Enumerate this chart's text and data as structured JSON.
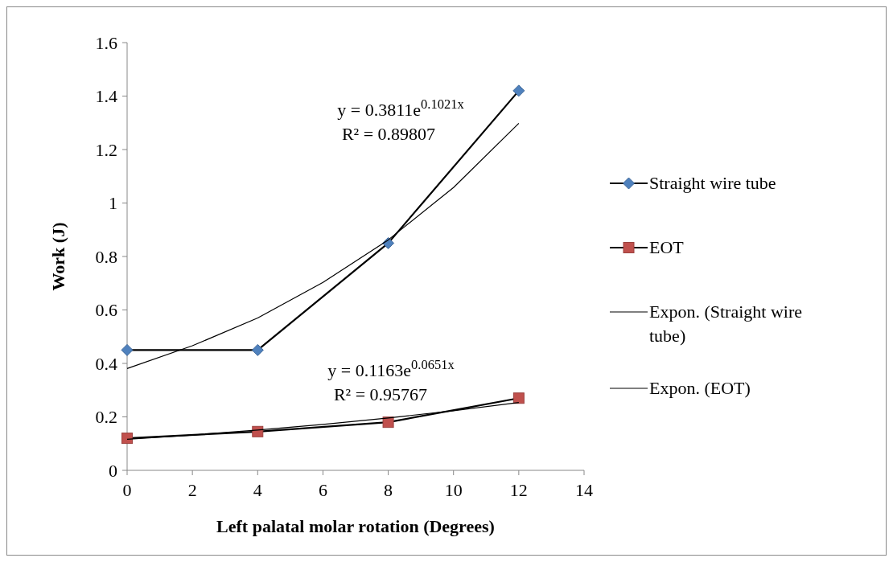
{
  "chart_data": {
    "type": "line",
    "xlabel": "Left palatal molar rotation (Degrees)",
    "ylabel": "Work (J)",
    "x": [
      0,
      4,
      8,
      12
    ],
    "series": [
      {
        "name": "Straight wire tube",
        "color": "#4f81bd",
        "marker": "diamond",
        "values": [
          0.45,
          0.45,
          0.85,
          1.42
        ]
      },
      {
        "name": "EOT",
        "color": "#c0504d",
        "marker": "square",
        "values": [
          0.12,
          0.145,
          0.18,
          0.27
        ]
      },
      {
        "name": "Expon. (Straight wire tube)",
        "color": "#000000",
        "marker": "none",
        "x": [
          0,
          2,
          4,
          6,
          8,
          10,
          12
        ],
        "values": [
          0.381,
          0.466,
          0.57,
          0.703,
          0.862,
          1.058,
          1.298
        ]
      },
      {
        "name": "Expon. (EOT)",
        "color": "#000000",
        "marker": "none",
        "x": [
          0,
          2,
          4,
          6,
          8,
          10,
          12
        ],
        "values": [
          0.116,
          0.132,
          0.151,
          0.172,
          0.196,
          0.223,
          0.254
        ]
      }
    ],
    "xlim": [
      0,
      14
    ],
    "xticks": [
      0,
      2,
      4,
      6,
      8,
      10,
      12,
      14
    ],
    "ylim": [
      0,
      1.6
    ],
    "yticks": [
      0,
      0.2,
      0.4,
      0.6,
      0.8,
      1,
      1.2,
      1.4,
      1.6
    ],
    "grid": false,
    "legend": "right",
    "annotations": [
      "y = 0.3811e$^{0.1021x}$",
      "R² = 0.89807",
      "y = 0.1163e$^{0.0651x}$",
      "R² = 0.95767"
    ]
  }
}
